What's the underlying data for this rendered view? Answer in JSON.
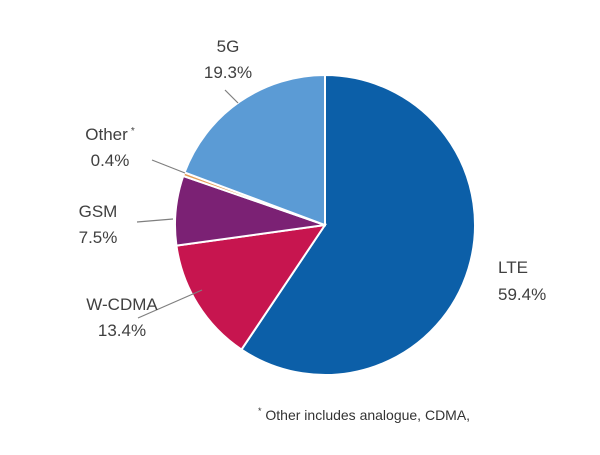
{
  "chart_data": {
    "type": "pie",
    "start": "top",
    "direction": "clockwise",
    "slices": [
      {
        "label": "LTE",
        "value": 59.4,
        "value_label": "59.4%",
        "color": "#0c5fa8"
      },
      {
        "label": "W-CDMA",
        "value": 13.4,
        "value_label": "13.4%",
        "color": "#c7154f"
      },
      {
        "label": "GSM",
        "value": 7.5,
        "value_label": "7.5%",
        "color": "#7b2174"
      },
      {
        "label": "Other",
        "label_marker": "*",
        "value": 0.4,
        "value_label": "0.4%",
        "color": "#e6a05a"
      },
      {
        "label": "5G",
        "value": 19.3,
        "value_label": "19.3%",
        "color": "#5b9bd5"
      }
    ],
    "footnote": "Other includes analogue, CDMA,",
    "footnote_marker": "*"
  }
}
